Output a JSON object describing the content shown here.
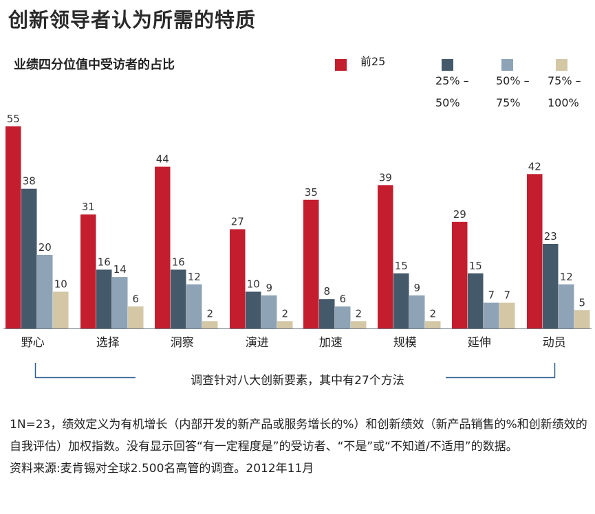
{
  "title": "创新领导者认为所需的特质",
  "subtitle": "业绩四分位值中受访者的占比",
  "legend": [
    {
      "label": "前25",
      "color": "#c41e2e"
    },
    {
      "label": "25% –50%",
      "color": "#44596a"
    },
    {
      "label": "50% –75%",
      "color": "#8ea3b6"
    },
    {
      "label": "75% –100%",
      "color": "#d3c7a6"
    }
  ],
  "range_label": "调查针对八大创新要素，其中有27个方法",
  "footnote_1": "1N=23，绩效定义为有机增长（内部开发的新产品或服务增长的%）和创新绩效（新产品销售的%和创新绩效的自我评估）加权指数。没有显示回答“有一定程度是”的受访者、“不是”或“不知道/不适用”的数据。",
  "footnote_2": "资料来源:麦肯锡对全球2.500名高管的调查。2012年11月",
  "chart_data": {
    "type": "bar",
    "categories": [
      "野心",
      "选择",
      "洞察",
      "演进",
      "加速",
      "规模",
      "延伸",
      "动员"
    ],
    "series": [
      {
        "name": "前25",
        "color": "#c41e2e",
        "values": [
          55,
          31,
          44,
          27,
          35,
          39,
          29,
          42
        ]
      },
      {
        "name": "25% –50%",
        "color": "#44596a",
        "values": [
          38,
          16,
          16,
          10,
          8,
          15,
          15,
          23
        ]
      },
      {
        "name": "50% –75%",
        "color": "#8ea3b6",
        "values": [
          20,
          14,
          12,
          9,
          6,
          9,
          7,
          12
        ]
      },
      {
        "name": "75% –100%",
        "color": "#d3c7a6",
        "values": [
          10,
          6,
          2,
          2,
          2,
          2,
          7,
          5
        ]
      }
    ],
    "data_labels": true,
    "title": "创新领导者认为所需的特质",
    "ylabel": "业绩四分位值中受访者的占比",
    "ylim": [
      0,
      55
    ],
    "legend_position": "top-right"
  }
}
